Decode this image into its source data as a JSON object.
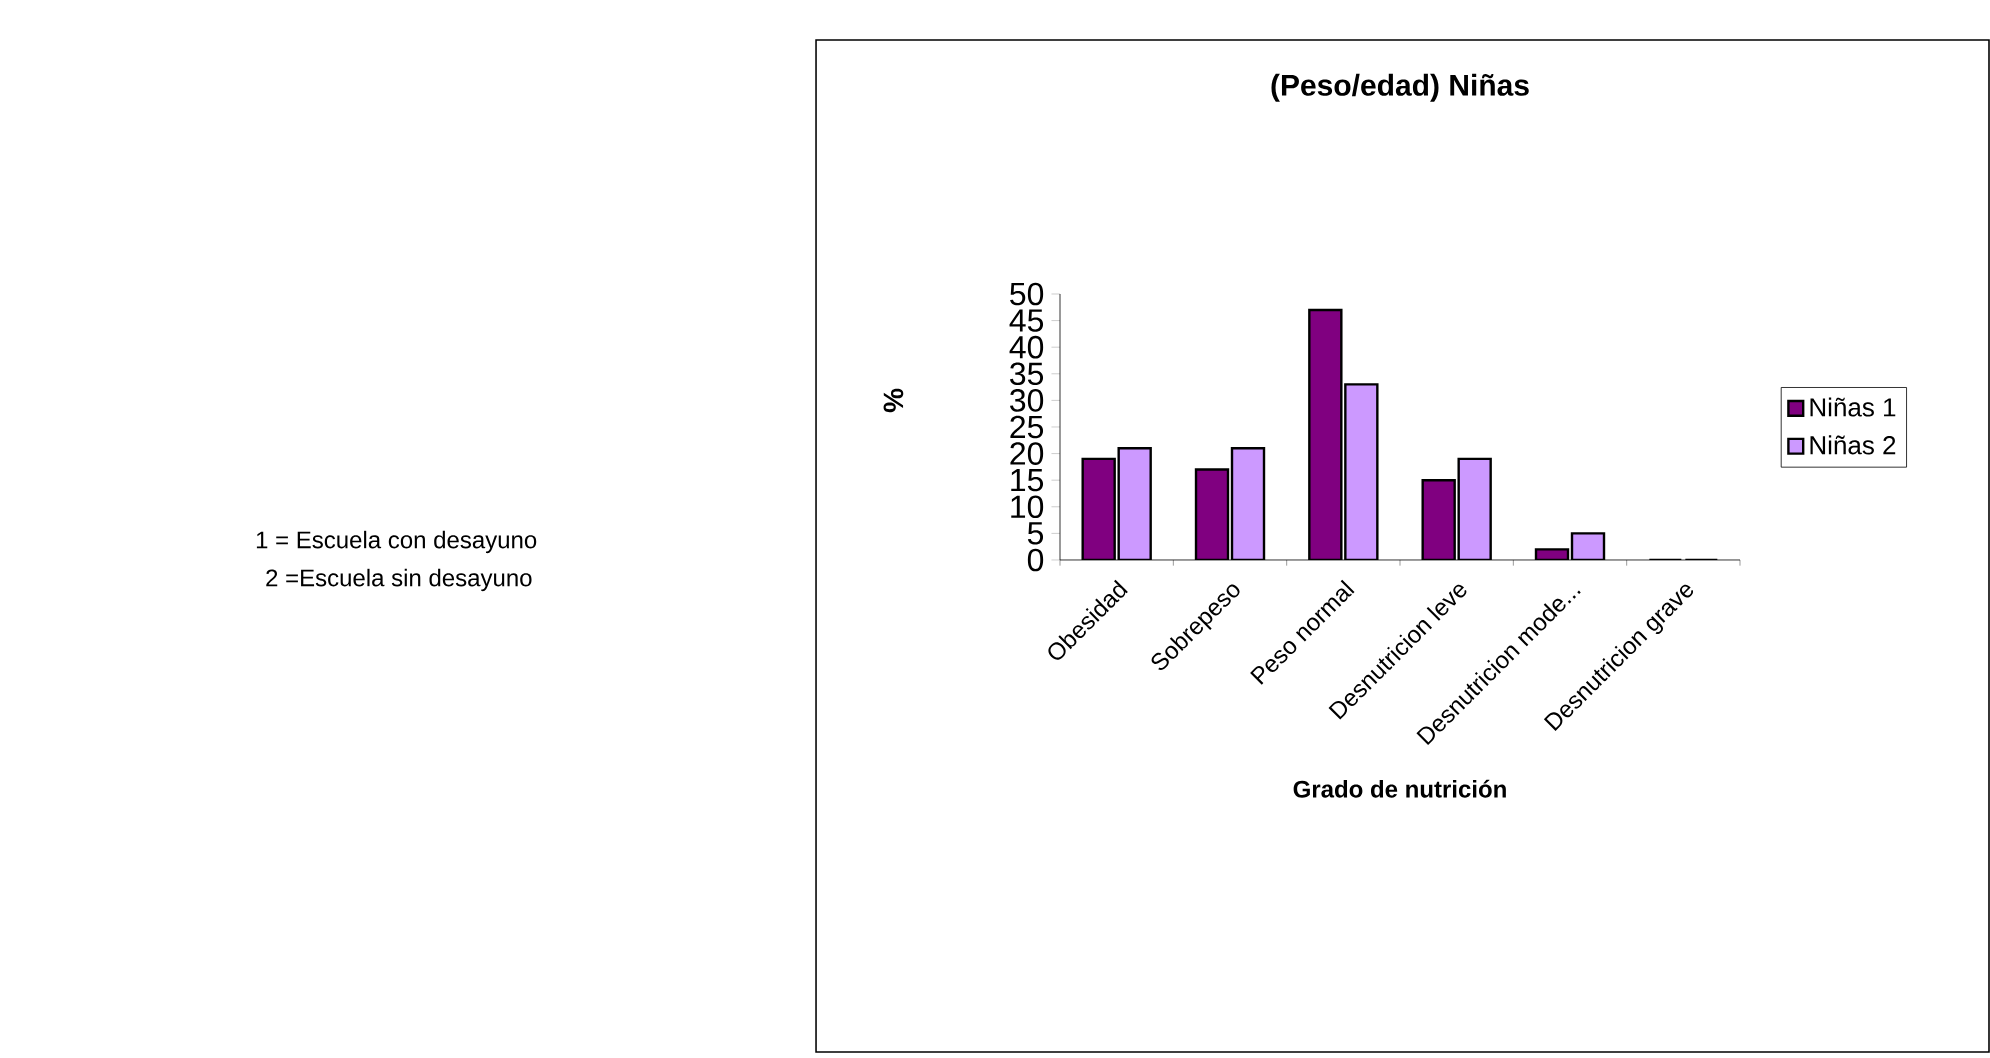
{
  "chart_data": {
    "type": "bar",
    "title": "(Peso/edad) Niñas",
    "xlabel": "Grado de nutrición",
    "ylabel": "%",
    "categories": [
      "Obesidad",
      "Sobrepeso",
      "Peso normal",
      "Desnutricion leve",
      "Desnutricion mode...",
      "Desnutricion grave"
    ],
    "series": [
      {
        "name": "Niñas 1",
        "color": "#800080",
        "values": [
          19,
          17,
          47,
          15,
          2,
          0
        ]
      },
      {
        "name": "Niñas 2",
        "color": "#cc99ff",
        "values": [
          21,
          21,
          33,
          19,
          5,
          0
        ]
      }
    ],
    "ylim": [
      0,
      50
    ],
    "yticks": [
      0,
      5,
      10,
      15,
      20,
      25,
      30,
      35,
      40,
      45,
      50
    ],
    "legend": "right",
    "grid": false,
    "annotations": [
      "1 = Escuela con desayuno",
      "2 =Escuela sin desayuno"
    ]
  }
}
